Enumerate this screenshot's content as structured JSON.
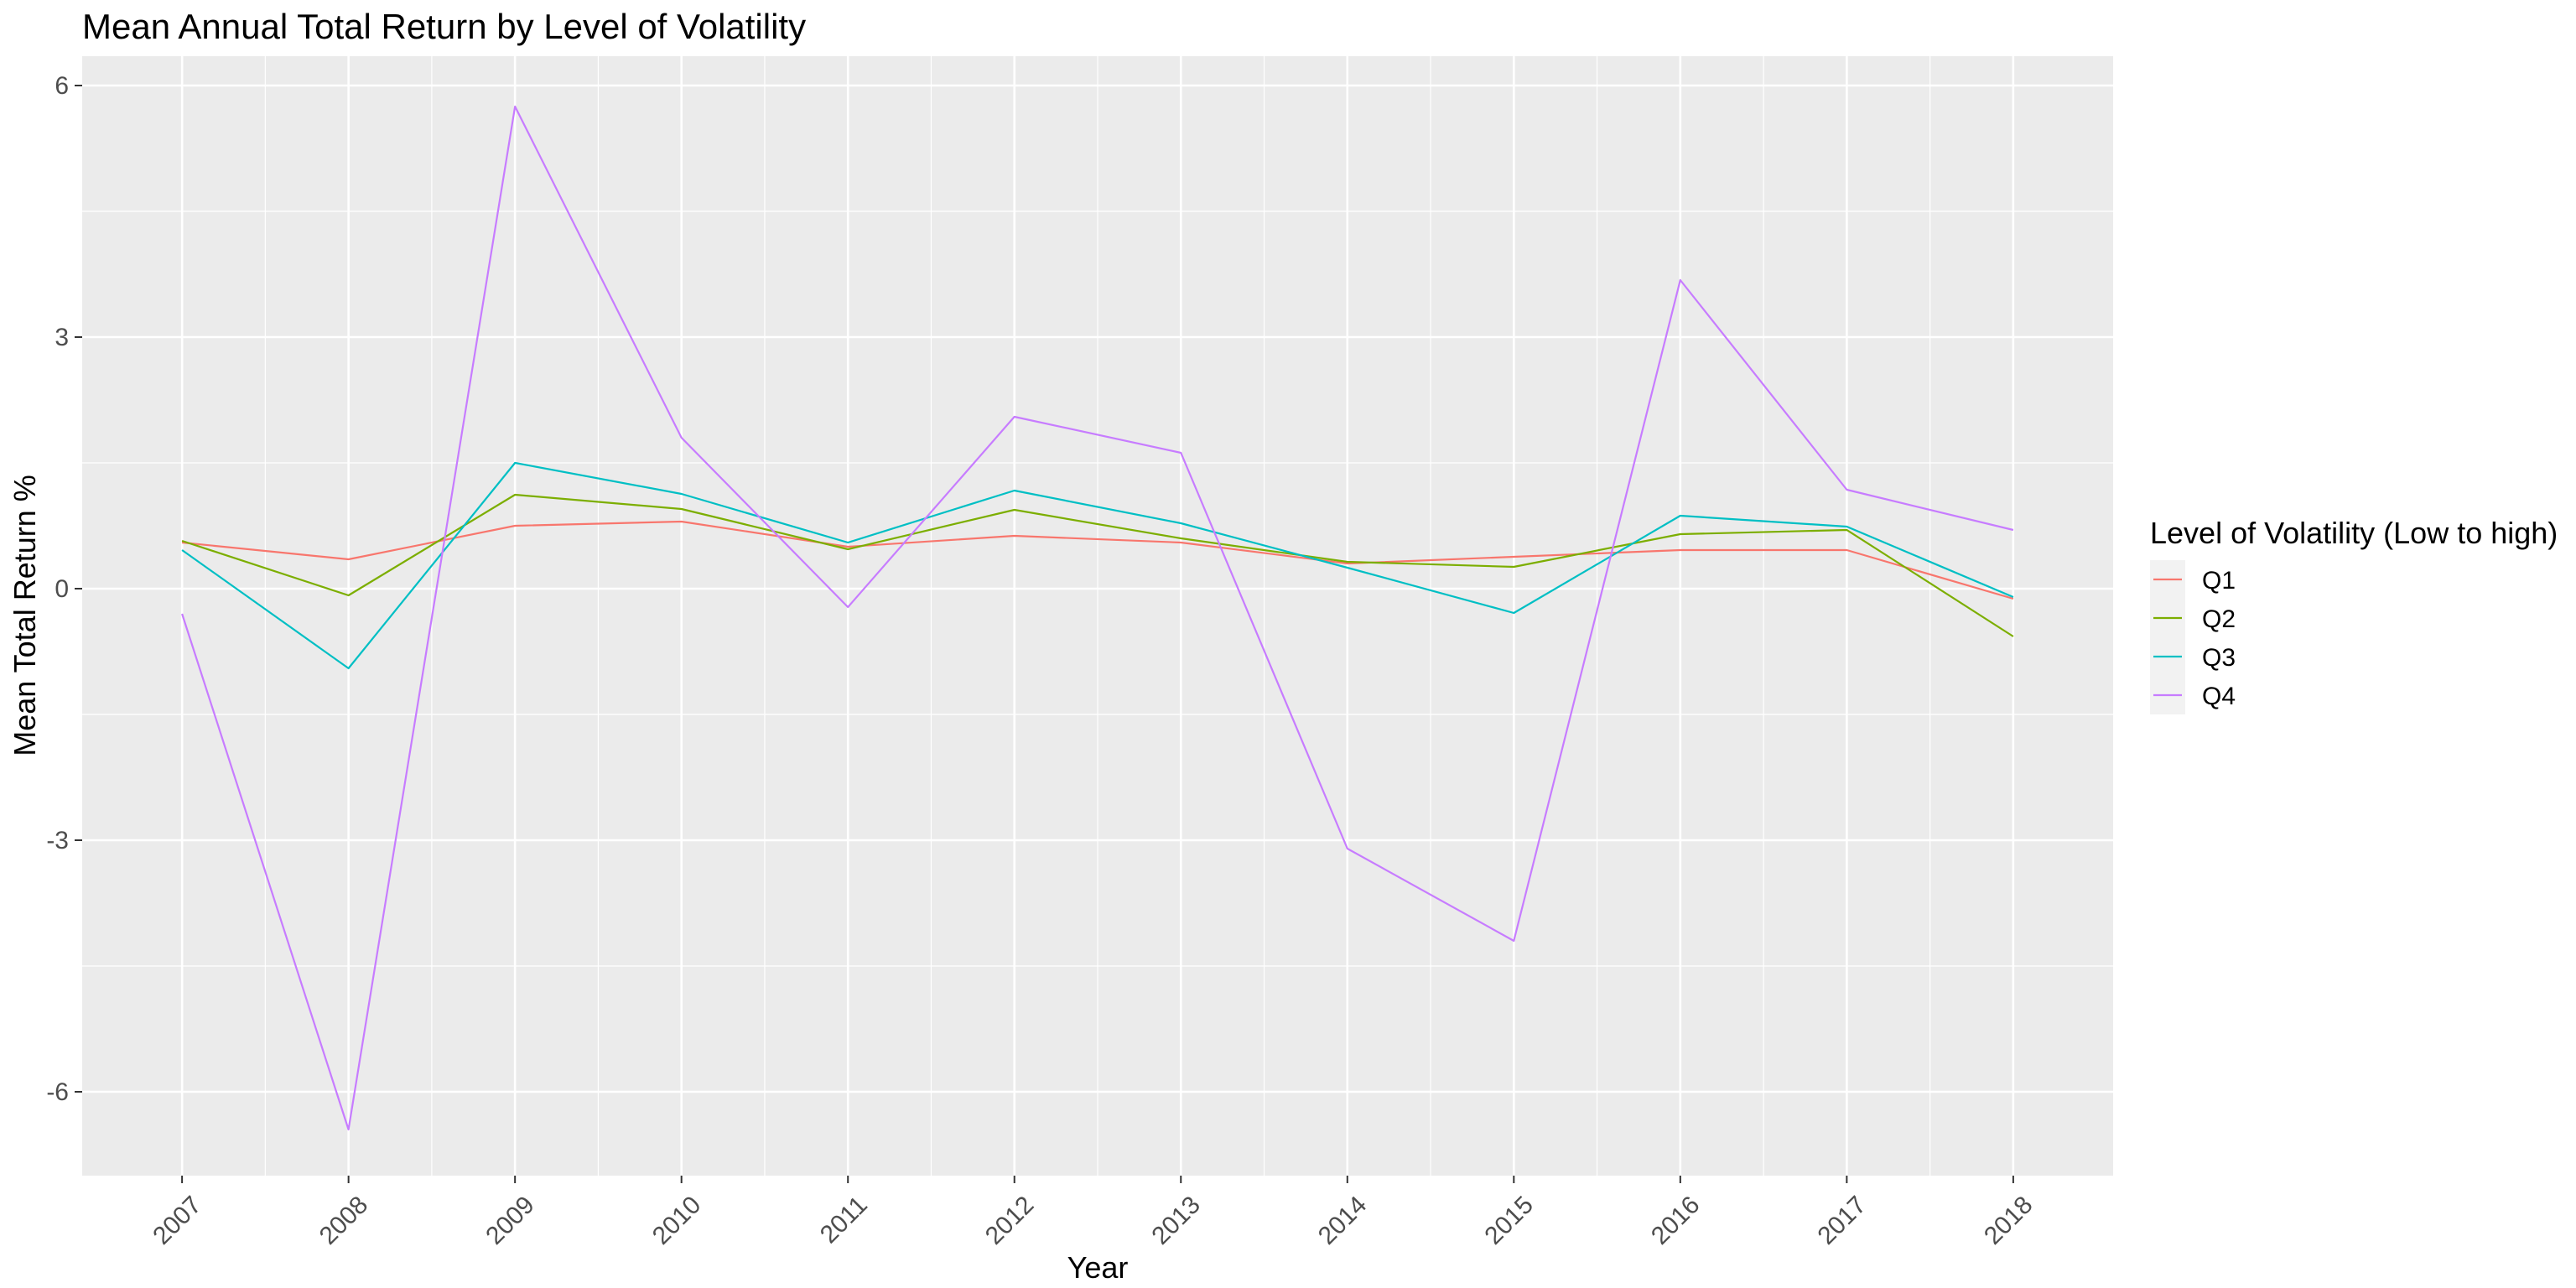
{
  "chart_data": {
    "type": "line",
    "title": "Mean Annual Total Return by Level of Volatility",
    "xlabel": "Year",
    "ylabel": "Mean Total Return %",
    "x": [
      "2007",
      "2008",
      "2009",
      "2010",
      "2011",
      "2012",
      "2013",
      "2014",
      "2015",
      "2016",
      "2017",
      "2018"
    ],
    "y_ticks": [
      -6,
      -3,
      0,
      3,
      6
    ],
    "y_tick_labels": [
      "-6",
      "-3",
      "0",
      "3",
      "6"
    ],
    "ylim": [
      -7.0,
      6.35
    ],
    "grid": true,
    "legend": {
      "title": "Level of Volatility (Low to high)",
      "position": "right"
    },
    "series": [
      {
        "name": "Q1",
        "color": "#F8766D",
        "values": [
          0.55,
          0.35,
          0.75,
          0.8,
          0.5,
          0.63,
          0.55,
          0.3,
          0.38,
          0.46,
          0.46,
          -0.12
        ]
      },
      {
        "name": "Q2",
        "color": "#7CAE00",
        "values": [
          0.57,
          -0.08,
          1.12,
          0.95,
          0.47,
          0.94,
          0.6,
          0.32,
          0.26,
          0.65,
          0.7,
          -0.57
        ]
      },
      {
        "name": "Q3",
        "color": "#00BFC4",
        "values": [
          0.46,
          -0.95,
          1.5,
          1.13,
          0.55,
          1.17,
          0.78,
          0.25,
          -0.29,
          0.87,
          0.74,
          -0.1
        ]
      },
      {
        "name": "Q4",
        "color": "#C77CFF",
        "values": [
          -0.3,
          -6.45,
          5.75,
          1.8,
          -0.22,
          2.05,
          1.62,
          -3.1,
          -4.2,
          3.68,
          1.18,
          0.7
        ]
      }
    ]
  }
}
